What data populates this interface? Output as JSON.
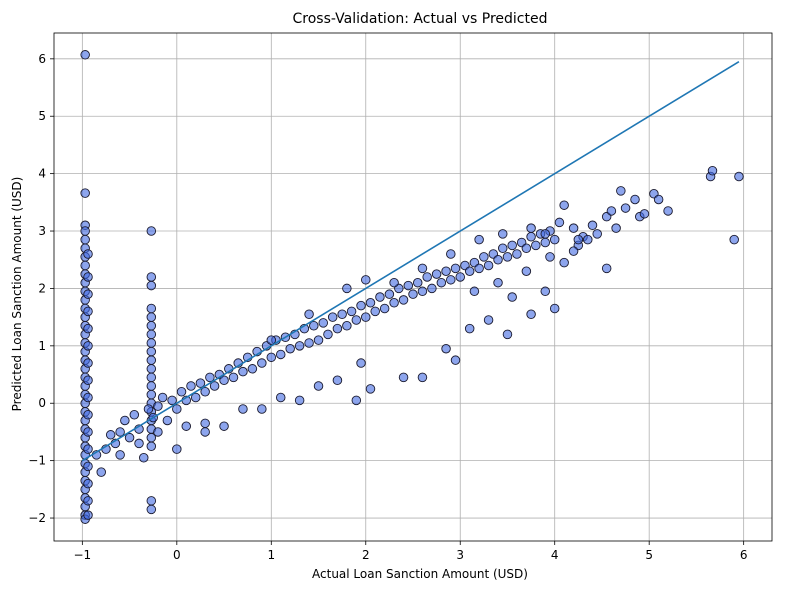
{
  "chart_data": {
    "type": "scatter",
    "title": "Cross-Validation: Actual vs Predicted",
    "xlabel": "Actual Loan Sanction Amount (USD)",
    "ylabel": "Predicted Loan Sanction Amount (USD)",
    "xlim": [
      -1.3,
      6.3
    ],
    "ylim": [
      -2.4,
      6.45
    ],
    "xticks": [
      -1,
      0,
      1,
      2,
      3,
      4,
      5,
      6
    ],
    "yticks": [
      -2,
      -1,
      0,
      1,
      2,
      3,
      4,
      5,
      6
    ],
    "grid": true,
    "reference_line": {
      "x": [
        -1,
        5.95
      ],
      "y": [
        -1,
        5.95
      ],
      "color": "#1f77b4"
    },
    "point_color": "#4169e1",
    "points": [
      [
        -0.97,
        6.07
      ],
      [
        -0.97,
        3.66
      ],
      [
        -0.97,
        3.1
      ],
      [
        -0.97,
        3.0
      ],
      [
        -0.97,
        2.85
      ],
      [
        -0.97,
        2.7
      ],
      [
        -0.97,
        2.55
      ],
      [
        -0.97,
        2.4
      ],
      [
        -0.97,
        2.25
      ],
      [
        -0.97,
        2.1
      ],
      [
        -0.97,
        1.95
      ],
      [
        -0.97,
        1.8
      ],
      [
        -0.97,
        1.65
      ],
      [
        -0.97,
        1.5
      ],
      [
        -0.97,
        1.35
      ],
      [
        -0.97,
        1.2
      ],
      [
        -0.97,
        1.05
      ],
      [
        -0.97,
        0.9
      ],
      [
        -0.97,
        0.75
      ],
      [
        -0.97,
        0.6
      ],
      [
        -0.97,
        0.45
      ],
      [
        -0.97,
        0.3
      ],
      [
        -0.97,
        0.15
      ],
      [
        -0.97,
        0.0
      ],
      [
        -0.97,
        -0.15
      ],
      [
        -0.97,
        -0.3
      ],
      [
        -0.97,
        -0.45
      ],
      [
        -0.97,
        -0.6
      ],
      [
        -0.97,
        -0.75
      ],
      [
        -0.97,
        -0.9
      ],
      [
        -0.97,
        -1.05
      ],
      [
        -0.97,
        -1.2
      ],
      [
        -0.97,
        -1.35
      ],
      [
        -0.97,
        -1.5
      ],
      [
        -0.97,
        -1.65
      ],
      [
        -0.97,
        -1.8
      ],
      [
        -0.97,
        -1.95
      ],
      [
        -0.97,
        -2.02
      ],
      [
        -0.94,
        2.6
      ],
      [
        -0.94,
        2.2
      ],
      [
        -0.94,
        1.9
      ],
      [
        -0.94,
        1.6
      ],
      [
        -0.94,
        1.3
      ],
      [
        -0.94,
        1.0
      ],
      [
        -0.94,
        0.7
      ],
      [
        -0.94,
        0.4
      ],
      [
        -0.94,
        0.1
      ],
      [
        -0.94,
        -0.2
      ],
      [
        -0.94,
        -0.5
      ],
      [
        -0.94,
        -0.8
      ],
      [
        -0.94,
        -1.1
      ],
      [
        -0.94,
        -1.4
      ],
      [
        -0.94,
        -1.7
      ],
      [
        -0.94,
        -1.95
      ],
      [
        -0.27,
        3.0
      ],
      [
        -0.27,
        2.2
      ],
      [
        -0.27,
        2.05
      ],
      [
        -0.27,
        1.65
      ],
      [
        -0.27,
        1.5
      ],
      [
        -0.27,
        1.35
      ],
      [
        -0.27,
        1.2
      ],
      [
        -0.27,
        1.05
      ],
      [
        -0.27,
        0.9
      ],
      [
        -0.27,
        0.75
      ],
      [
        -0.27,
        0.6
      ],
      [
        -0.27,
        0.45
      ],
      [
        -0.27,
        0.3
      ],
      [
        -0.27,
        0.15
      ],
      [
        -0.27,
        0.0
      ],
      [
        -0.27,
        -0.15
      ],
      [
        -0.27,
        -0.3
      ],
      [
        -0.27,
        -0.45
      ],
      [
        -0.27,
        -0.6
      ],
      [
        -0.27,
        -0.75
      ],
      [
        -0.27,
        -1.7
      ],
      [
        -0.27,
        -1.85
      ],
      [
        -0.85,
        -0.9
      ],
      [
        -0.8,
        -1.2
      ],
      [
        -0.75,
        -0.8
      ],
      [
        -0.7,
        -0.55
      ],
      [
        -0.65,
        -0.7
      ],
      [
        -0.6,
        -0.5
      ],
      [
        -0.55,
        -0.3
      ],
      [
        -0.5,
        -0.6
      ],
      [
        -0.45,
        -0.2
      ],
      [
        -0.4,
        -0.45
      ],
      [
        -0.35,
        -0.95
      ],
      [
        -0.3,
        -0.1
      ],
      [
        -0.25,
        -0.25
      ],
      [
        -0.2,
        -0.05
      ],
      [
        -0.15,
        0.1
      ],
      [
        -0.1,
        -0.3
      ],
      [
        -0.05,
        0.05
      ],
      [
        0.0,
        -0.1
      ],
      [
        0.0,
        -0.8
      ],
      [
        0.05,
        0.2
      ],
      [
        0.1,
        0.05
      ],
      [
        0.15,
        0.3
      ],
      [
        0.2,
        0.1
      ],
      [
        0.25,
        0.35
      ],
      [
        0.3,
        -0.5
      ],
      [
        0.3,
        0.2
      ],
      [
        0.35,
        0.45
      ],
      [
        0.4,
        0.3
      ],
      [
        0.45,
        0.5
      ],
      [
        0.5,
        0.4
      ],
      [
        0.55,
        0.6
      ],
      [
        0.6,
        0.45
      ],
      [
        0.65,
        0.7
      ],
      [
        0.7,
        0.55
      ],
      [
        0.75,
        0.8
      ],
      [
        0.8,
        0.6
      ],
      [
        0.85,
        0.9
      ],
      [
        0.9,
        0.7
      ],
      [
        0.95,
        1.0
      ],
      [
        1.0,
        0.8
      ],
      [
        1.05,
        1.1
      ],
      [
        1.1,
        0.85
      ],
      [
        1.15,
        1.15
      ],
      [
        1.2,
        0.95
      ],
      [
        1.25,
        1.2
      ],
      [
        1.3,
        1.0
      ],
      [
        1.35,
        1.3
      ],
      [
        1.4,
        1.05
      ],
      [
        1.45,
        1.35
      ],
      [
        1.5,
        1.1
      ],
      [
        1.55,
        1.4
      ],
      [
        1.6,
        1.2
      ],
      [
        1.65,
        1.5
      ],
      [
        1.7,
        1.3
      ],
      [
        1.75,
        1.55
      ],
      [
        1.8,
        1.35
      ],
      [
        1.85,
        1.6
      ],
      [
        1.9,
        1.45
      ],
      [
        1.95,
        1.7
      ],
      [
        2.0,
        1.5
      ],
      [
        2.05,
        1.75
      ],
      [
        2.1,
        1.6
      ],
      [
        2.15,
        1.85
      ],
      [
        2.2,
        1.65
      ],
      [
        2.25,
        1.9
      ],
      [
        2.3,
        1.75
      ],
      [
        2.35,
        2.0
      ],
      [
        2.4,
        1.8
      ],
      [
        2.45,
        2.05
      ],
      [
        2.5,
        1.9
      ],
      [
        2.55,
        2.1
      ],
      [
        2.6,
        1.95
      ],
      [
        2.65,
        2.2
      ],
      [
        2.7,
        2.0
      ],
      [
        2.75,
        2.25
      ],
      [
        2.8,
        2.1
      ],
      [
        2.85,
        2.3
      ],
      [
        2.9,
        2.15
      ],
      [
        2.95,
        2.35
      ],
      [
        3.0,
        2.2
      ],
      [
        3.05,
        2.4
      ],
      [
        3.1,
        2.3
      ],
      [
        3.15,
        2.45
      ],
      [
        3.2,
        2.35
      ],
      [
        3.25,
        2.55
      ],
      [
        3.3,
        2.4
      ],
      [
        3.35,
        2.6
      ],
      [
        3.4,
        2.5
      ],
      [
        3.45,
        2.7
      ],
      [
        3.5,
        2.55
      ],
      [
        3.55,
        2.75
      ],
      [
        3.6,
        2.6
      ],
      [
        3.65,
        2.8
      ],
      [
        3.7,
        2.7
      ],
      [
        3.75,
        2.9
      ],
      [
        3.8,
        2.75
      ],
      [
        3.85,
        2.95
      ],
      [
        3.9,
        2.8
      ],
      [
        3.95,
        3.0
      ],
      [
        4.0,
        2.85
      ],
      [
        -0.6,
        -0.9
      ],
      [
        -0.4,
        -0.7
      ],
      [
        -0.2,
        -0.5
      ],
      [
        0.1,
        -0.4
      ],
      [
        0.3,
        -0.35
      ],
      [
        0.5,
        -0.4
      ],
      [
        0.7,
        -0.1
      ],
      [
        0.9,
        -0.1
      ],
      [
        1.1,
        0.1
      ],
      [
        1.3,
        0.05
      ],
      [
        1.5,
        0.3
      ],
      [
        1.7,
        0.4
      ],
      [
        1.9,
        0.05
      ],
      [
        1.95,
        0.7
      ],
      [
        2.05,
        0.25
      ],
      [
        2.4,
        0.45
      ],
      [
        2.6,
        0.45
      ],
      [
        2.85,
        0.95
      ],
      [
        2.95,
        0.75
      ],
      [
        3.1,
        1.3
      ],
      [
        3.3,
        1.45
      ],
      [
        3.5,
        1.2
      ],
      [
        3.55,
        1.85
      ],
      [
        3.75,
        1.55
      ],
      [
        3.9,
        1.95
      ],
      [
        4.0,
        1.65
      ],
      [
        1.0,
        1.1
      ],
      [
        1.4,
        1.55
      ],
      [
        1.8,
        2.0
      ],
      [
        2.0,
        2.15
      ],
      [
        2.3,
        2.1
      ],
      [
        2.6,
        2.35
      ],
      [
        2.9,
        2.6
      ],
      [
        3.2,
        2.85
      ],
      [
        3.45,
        2.95
      ],
      [
        3.75,
        3.05
      ],
      [
        3.9,
        2.95
      ],
      [
        4.05,
        3.15
      ],
      [
        4.1,
        3.45
      ],
      [
        4.2,
        3.05
      ],
      [
        4.25,
        2.75
      ],
      [
        4.3,
        2.9
      ],
      [
        4.35,
        2.85
      ],
      [
        4.4,
        3.1
      ],
      [
        4.45,
        2.95
      ],
      [
        4.55,
        3.25
      ],
      [
        4.6,
        3.35
      ],
      [
        4.65,
        3.05
      ],
      [
        4.7,
        3.7
      ],
      [
        4.75,
        3.4
      ],
      [
        4.85,
        3.55
      ],
      [
        4.9,
        3.25
      ],
      [
        4.95,
        3.3
      ],
      [
        5.05,
        3.65
      ],
      [
        5.1,
        3.55
      ],
      [
        5.2,
        3.35
      ],
      [
        5.65,
        3.95
      ],
      [
        5.67,
        4.05
      ],
      [
        5.9,
        2.85
      ],
      [
        5.95,
        3.95
      ],
      [
        4.1,
        2.45
      ],
      [
        4.25,
        2.85
      ],
      [
        4.55,
        2.35
      ],
      [
        4.2,
        2.65
      ],
      [
        3.95,
        2.55
      ],
      [
        3.7,
        2.3
      ],
      [
        3.4,
        2.1
      ],
      [
        3.15,
        1.95
      ]
    ]
  }
}
